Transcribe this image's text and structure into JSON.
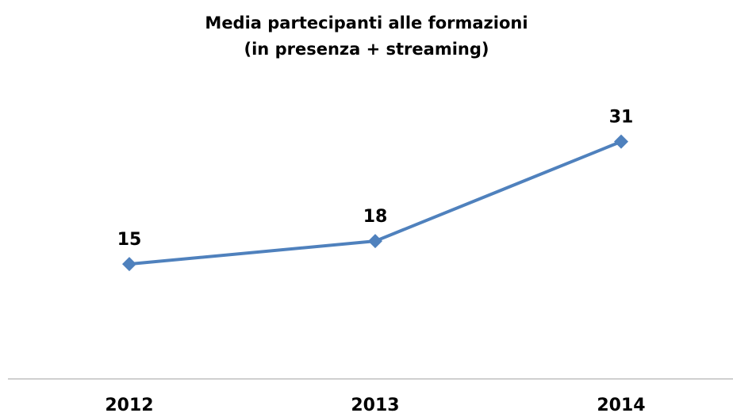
{
  "chart_data": {
    "type": "line",
    "title": "Media partecipanti alle formazioni",
    "subtitle": "(in presenza + streaming)",
    "categories": [
      "2012",
      "2013",
      "2014"
    ],
    "series": [
      {
        "name": "Media partecipanti",
        "color": "#4f81bd",
        "values": [
          15,
          18,
          31
        ]
      }
    ],
    "ylim": [
      0,
      35
    ]
  }
}
